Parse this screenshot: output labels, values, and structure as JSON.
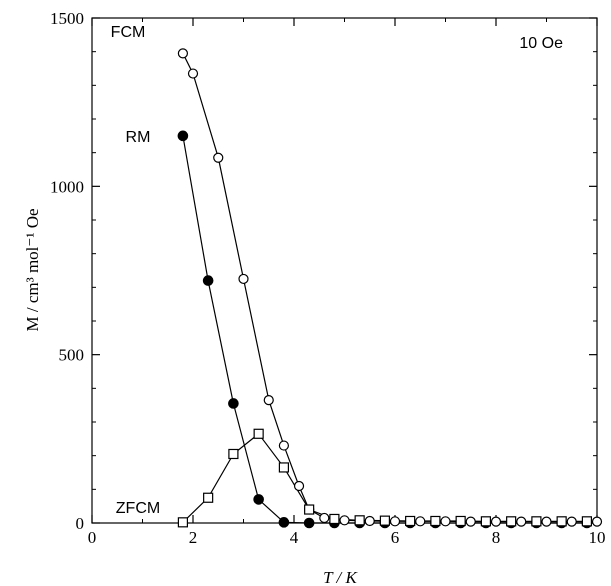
{
  "chart_data": {
    "type": "line",
    "xlabel": "T / K",
    "ylabel": "M / cm³ mol⁻¹ Oe",
    "annotation": "10 Oe",
    "xlim": [
      0,
      10
    ],
    "ylim": [
      0,
      1500
    ],
    "x_ticks": [
      0,
      2,
      4,
      6,
      8,
      10
    ],
    "y_ticks": [
      0,
      500,
      1000,
      1500
    ],
    "grid": false,
    "legend": "none",
    "series": [
      {
        "name": "FCM",
        "marker": "open-circle",
        "x": [
          1.8,
          2.0,
          2.5,
          3.0,
          3.5,
          3.8,
          4.1,
          4.3,
          4.6,
          5.0,
          5.5,
          6.0,
          6.5,
          7.0,
          7.5,
          8.0,
          8.5,
          9.0,
          9.5,
          10.0
        ],
        "y": [
          1395,
          1335,
          1085,
          725,
          365,
          230,
          110,
          40,
          15,
          8,
          6,
          5,
          5,
          5,
          4,
          4,
          4,
          4,
          4,
          4
        ]
      },
      {
        "name": "RM",
        "marker": "filled-circle",
        "x": [
          1.8,
          2.3,
          2.8,
          3.3,
          3.8,
          4.3,
          4.8,
          5.3,
          5.8,
          6.3,
          6.8,
          7.3,
          7.8,
          8.3,
          8.8,
          9.3,
          9.8
        ],
        "y": [
          1150,
          720,
          355,
          70,
          2,
          0,
          0,
          0,
          0,
          0,
          0,
          0,
          0,
          0,
          0,
          0,
          0
        ]
      },
      {
        "name": "ZFCM",
        "marker": "open-square",
        "x": [
          1.8,
          2.3,
          2.8,
          3.3,
          3.8,
          4.3,
          4.8,
          5.3,
          5.8,
          6.3,
          6.8,
          7.3,
          7.8,
          8.3,
          8.8,
          9.3,
          9.8
        ],
        "y": [
          2,
          75,
          205,
          265,
          165,
          40,
          12,
          8,
          7,
          6,
          6,
          6,
          5,
          5,
          5,
          5,
          5
        ]
      }
    ]
  }
}
